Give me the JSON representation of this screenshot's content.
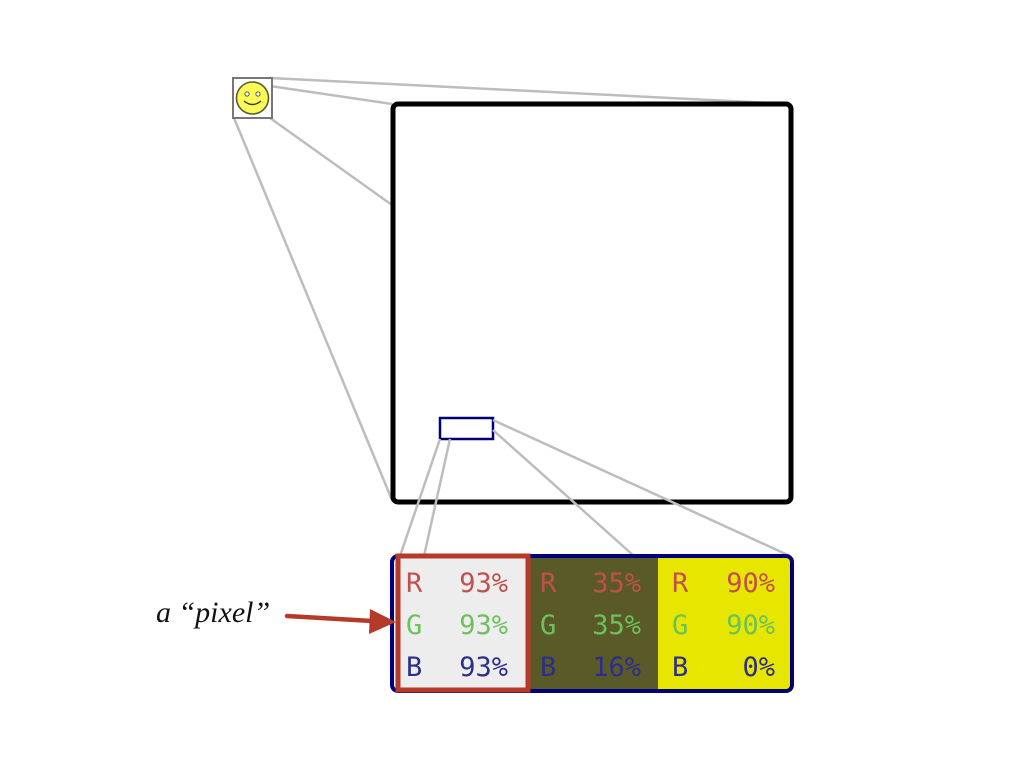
{
  "caption": "a “pixel”",
  "colors": {
    "face": "#fbfb57",
    "outline": "#5e5a34",
    "frame": "#000000",
    "selection": "#00007a",
    "pixel_highlight": "#b53a2a",
    "connector": "#bdbdbd",
    "r_text": "#c0504d",
    "g_text": "#6cc25a",
    "b_text": "#2d2d8a"
  },
  "pixels": [
    {
      "fill": "#ededed",
      "channels": [
        {
          "letter": "R",
          "value": "93%"
        },
        {
          "letter": "G",
          "value": "93%"
        },
        {
          "letter": "B",
          "value": "93%"
        }
      ]
    },
    {
      "fill": "#5a5a29",
      "channels": [
        {
          "letter": "R",
          "value": "35%"
        },
        {
          "letter": "G",
          "value": "35%"
        },
        {
          "letter": "B",
          "value": "16%"
        }
      ]
    },
    {
      "fill": "#e6e600",
      "channels": [
        {
          "letter": "R",
          "value": "90%"
        },
        {
          "letter": "G",
          "value": "90%"
        },
        {
          "letter": "B",
          "value": "0%"
        }
      ]
    }
  ]
}
